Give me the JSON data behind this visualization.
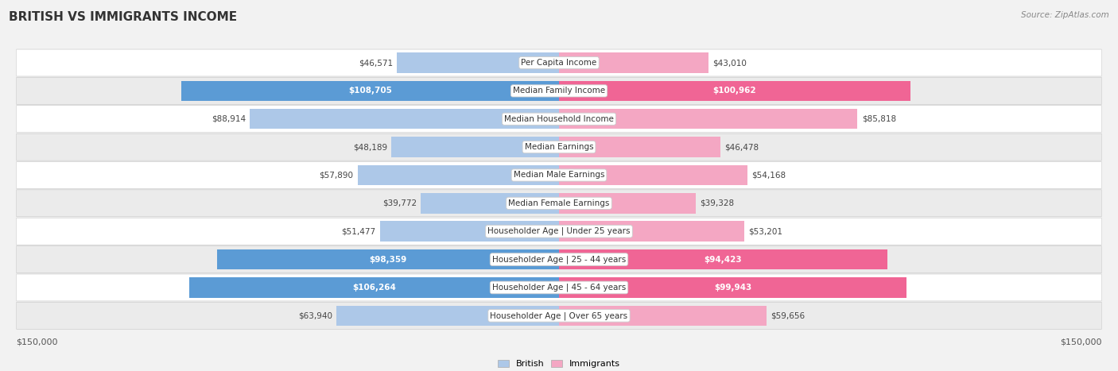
{
  "title": "BRITISH VS IMMIGRANTS INCOME",
  "source": "Source: ZipAtlas.com",
  "max_value": 150000,
  "categories": [
    "Per Capita Income",
    "Median Family Income",
    "Median Household Income",
    "Median Earnings",
    "Median Male Earnings",
    "Median Female Earnings",
    "Householder Age | Under 25 years",
    "Householder Age | 25 - 44 years",
    "Householder Age | 45 - 64 years",
    "Householder Age | Over 65 years"
  ],
  "british_values": [
    46571,
    108705,
    88914,
    48189,
    57890,
    39772,
    51477,
    98359,
    106264,
    63940
  ],
  "immigrant_values": [
    43010,
    100962,
    85818,
    46478,
    54168,
    39328,
    53201,
    94423,
    99943,
    59656
  ],
  "british_color_light": "#adc8e8",
  "british_color_dark": "#5b9bd5",
  "immigrant_color_light": "#f4a7c3",
  "immigrant_color_dark": "#f06595",
  "british_labels": [
    "$46,571",
    "$108,705",
    "$88,914",
    "$48,189",
    "$57,890",
    "$39,772",
    "$51,477",
    "$98,359",
    "$106,264",
    "$63,940"
  ],
  "immigrant_labels": [
    "$43,010",
    "$100,962",
    "$85,818",
    "$46,478",
    "$54,168",
    "$39,328",
    "$53,201",
    "$94,423",
    "$99,943",
    "$59,656"
  ],
  "british_text_inside": [
    false,
    true,
    false,
    false,
    false,
    false,
    false,
    true,
    true,
    false
  ],
  "immigrant_text_inside": [
    false,
    true,
    false,
    false,
    false,
    false,
    false,
    true,
    true,
    false
  ],
  "bg_color": "#f2f2f2",
  "row_bg_even": "#ffffff",
  "row_bg_odd": "#ebebeb",
  "title_fontsize": 11,
  "label_fontsize": 7.5,
  "category_fontsize": 7.5,
  "axis_fontsize": 8,
  "legend_fontsize": 8
}
